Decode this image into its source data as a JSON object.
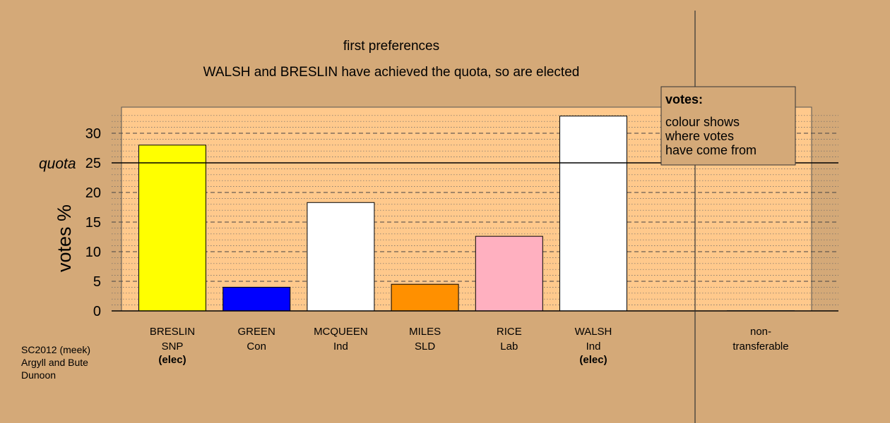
{
  "colors": {
    "background": "#d4a978",
    "plot_area": "#ffc98c",
    "legend_box": "#d4a978"
  },
  "chart_data": {
    "type": "bar",
    "title": "first preferences",
    "subtitle": "WALSH and BRESLIN have achieved the quota, so are elected",
    "ylabel": "votes %",
    "ylim": [
      0,
      33.5
    ],
    "yticks": [
      0,
      5,
      10,
      15,
      20,
      25,
      30
    ],
    "quota": 25,
    "quota_label": "quota",
    "categories": [
      {
        "name": "BRESLIN",
        "party": "SNP",
        "status": "(elec)",
        "value": 28.0,
        "color": "#ffff00"
      },
      {
        "name": "GREEN",
        "party": "Con",
        "status": "",
        "value": 4.0,
        "color": "#0000ff"
      },
      {
        "name": "MCQUEEN",
        "party": "Ind",
        "status": "",
        "value": 18.3,
        "color": "#ffffff"
      },
      {
        "name": "MILES",
        "party": "SLD",
        "status": "",
        "value": 4.5,
        "color": "#ff9000"
      },
      {
        "name": "RICE",
        "party": "Lab",
        "status": "",
        "value": 12.6,
        "color": "#ffb0c0"
      },
      {
        "name": "WALSH",
        "party": "Ind",
        "status": "(elec)",
        "value": 32.9,
        "color": "#ffffff"
      }
    ],
    "non_transferable": {
      "label_line1": "non-",
      "label_line2": "transferable",
      "value": 0
    },
    "legend": {
      "title": "votes:",
      "lines": [
        "colour shows",
        "where votes",
        "have come from"
      ]
    }
  },
  "footer": {
    "lines": [
      "SC2012 (meek)",
      "Argyll and Bute",
      "Dunoon"
    ]
  }
}
